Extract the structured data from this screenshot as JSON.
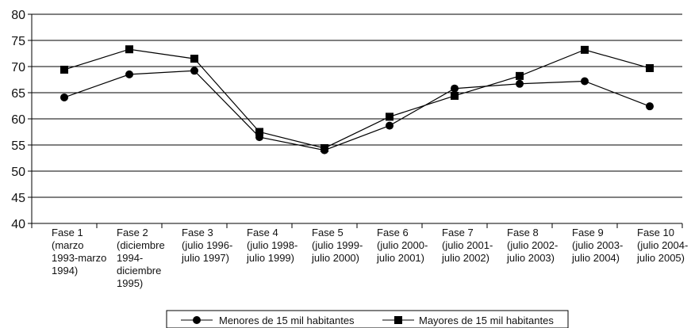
{
  "chart_data": {
    "type": "line",
    "title": "",
    "xlabel": "",
    "ylabel": "",
    "ylim": [
      40,
      80
    ],
    "yticks": [
      40,
      45,
      50,
      55,
      60,
      65,
      70,
      75,
      80
    ],
    "grid": "horizontal",
    "legend_position": "bottom",
    "categories": [
      "Fase 1 (marzo 1993-marzo 1994)",
      "Fase 2 (diciembre 1994-diciembre 1995)",
      "Fase 3 (julio 1996-julio 1997)",
      "Fase 4 (julio 1998-julio 1999)",
      "Fase 5 (julio 1999-julio 2000)",
      "Fase 6 (julio 2000-julio 2001)",
      "Fase 7 (julio 2001-julio 2002)",
      "Fase 8 (julio 2002-julio 2003)",
      "Fase 9 (julio 2003-julio 2004)",
      "Fase 10 (julio 2004-julio 2005)"
    ],
    "category_lines": [
      [
        "Fase 1",
        "(marzo",
        "1993-marzo",
        "1994)"
      ],
      [
        "Fase 2",
        "(diciembre",
        "1994-",
        "diciembre",
        "1995)"
      ],
      [
        "Fase 3",
        "(julio 1996-",
        "julio 1997)"
      ],
      [
        "Fase 4",
        "(julio 1998-",
        "julio 1999)"
      ],
      [
        "Fase 5",
        "(julio 1999-",
        "julio 2000)"
      ],
      [
        "Fase 6",
        "(julio 2000-",
        "julio 2001)"
      ],
      [
        "Fase 7",
        "(julio 2001-",
        "julio 2002)"
      ],
      [
        "Fase 8",
        "(julio 2002-",
        "julio 2003)"
      ],
      [
        "Fase 9",
        "(julio 2003-",
        "julio 2004)"
      ],
      [
        "Fase 10",
        "(julio 2004-",
        "julio 2005)"
      ]
    ],
    "series": [
      {
        "name": "Menores de 15 mil habitantes",
        "marker": "circle",
        "color": "#000000",
        "values": [
          64.1,
          68.5,
          69.2,
          56.5,
          54.0,
          58.7,
          65.8,
          66.7,
          67.2,
          62.4
        ]
      },
      {
        "name": "Mayores de 15 mil habitantes",
        "marker": "square",
        "color": "#000000",
        "values": [
          69.4,
          73.3,
          71.5,
          57.5,
          54.4,
          60.4,
          64.4,
          68.2,
          73.2,
          69.7
        ]
      }
    ]
  }
}
